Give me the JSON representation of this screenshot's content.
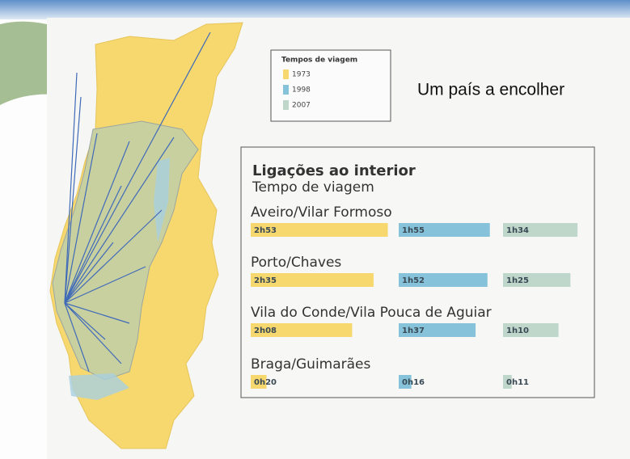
{
  "page_title": "Um país a encolher",
  "chart_data": {
    "type": "bar",
    "title": "Ligações ao interior",
    "subtitle": "Tempo de viagem",
    "legend_title": "Tempos de viagem",
    "categories": [
      "Aveiro/Vilar Formoso",
      "Porto/Chaves",
      "Vila do Conde/Vila Pouca de Aguiar",
      "Braga/Guimarães"
    ],
    "series": [
      {
        "name": "1973",
        "color": "#f6d86e",
        "values": [
          173,
          155,
          128,
          20
        ],
        "value_labels": [
          "2h53",
          "2h35",
          "2h08",
          "0h20"
        ]
      },
      {
        "name": "1998",
        "color": "#86c3da",
        "values": [
          115,
          112,
          97,
          16
        ],
        "value_labels": [
          "1h55",
          "1h52",
          "1h37",
          "0h16"
        ]
      },
      {
        "name": "2007",
        "color": "#bfd6cb",
        "values": [
          94,
          85,
          70,
          11
        ],
        "value_labels": [
          "1h34",
          "1h25",
          "1h10",
          "0h11"
        ]
      }
    ]
  }
}
